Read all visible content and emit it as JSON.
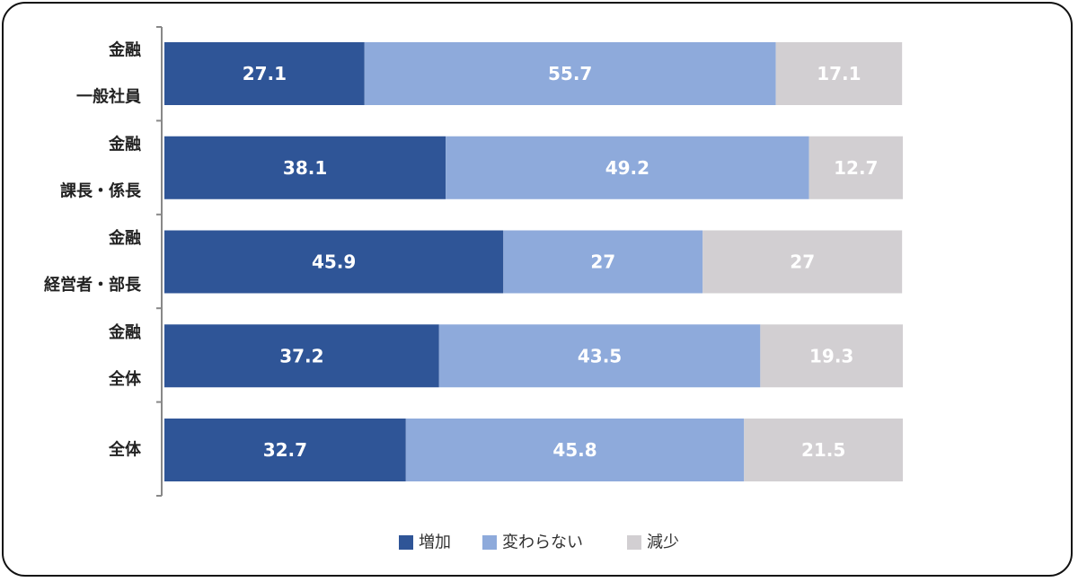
{
  "chart_data": {
    "type": "bar",
    "orientation": "horizontal",
    "stacked": true,
    "categories": [
      [
        "金融",
        "一般社員"
      ],
      [
        "金融",
        "課長・係長"
      ],
      [
        "金融",
        "経営者・部長"
      ],
      [
        "金融",
        "全体"
      ],
      [
        "全体"
      ]
    ],
    "series": [
      {
        "name": "増加",
        "color": "#2f5597",
        "values": [
          27.1,
          38.1,
          45.9,
          37.2,
          32.7
        ]
      },
      {
        "name": "変わらない",
        "color": "#8eaadb",
        "values": [
          55.7,
          49.2,
          27,
          43.5,
          45.8
        ]
      },
      {
        "name": "減少",
        "color": "#d2cfd2",
        "values": [
          17.1,
          12.7,
          27,
          19.3,
          21.5
        ]
      }
    ],
    "xlim": [
      0,
      100
    ],
    "data_labels": true,
    "grid": false,
    "legend_position": "bottom"
  }
}
